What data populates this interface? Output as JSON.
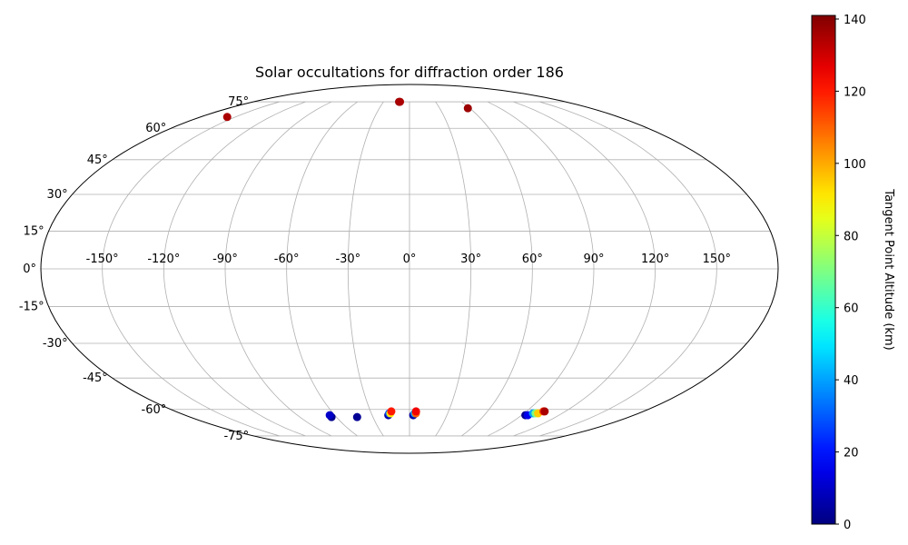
{
  "chart_data": {
    "type": "scatter",
    "projection": "mollweide",
    "title": "Solar occultations for diffraction order 186",
    "x_ticks": [
      -150,
      -120,
      -90,
      -60,
      -30,
      0,
      30,
      60,
      90,
      120,
      150
    ],
    "x_tick_labels": [
      "-150°",
      "-120°",
      "-90°",
      "-60°",
      "-30°",
      "0°",
      "30°",
      "60°",
      "90°",
      "120°",
      "150°"
    ],
    "y_ticks": [
      -75,
      -60,
      -45,
      -30,
      -15,
      0,
      15,
      30,
      45,
      60,
      75
    ],
    "y_tick_labels": [
      "-75°",
      "-60°",
      "-45°",
      "-30°",
      "-15°",
      "0°",
      "15°",
      "30°",
      "45°",
      "60°",
      "75°"
    ],
    "grid": true,
    "xlim": [
      -180,
      180
    ],
    "ylim": [
      -90,
      90
    ],
    "colorbar": {
      "label": "Tangent Point Altitude (km)",
      "range": [
        0,
        141
      ],
      "ticks": [
        0,
        20,
        40,
        60,
        80,
        100,
        120,
        140
      ],
      "tick_labels": [
        "0",
        "20",
        "40",
        "60",
        "80",
        "100",
        "120",
        "140"
      ],
      "colormap": "jet"
    },
    "points": [
      {
        "lon": -157,
        "lat": 66,
        "alt": 135
      },
      {
        "lon": -12,
        "lat": 75,
        "alt": 138
      },
      {
        "lon": -11,
        "lat": 75,
        "alt": 135
      },
      {
        "lon": 58,
        "lat": 71,
        "alt": 137
      },
      {
        "lon": -64,
        "lat": -64,
        "alt": 2
      },
      {
        "lon": -64,
        "lat": -63,
        "alt": 10
      },
      {
        "lon": -43,
        "lat": -64,
        "alt": 3
      },
      {
        "lon": -17,
        "lat": -63,
        "alt": 5
      },
      {
        "lon": -16,
        "lat": -62,
        "alt": 30
      },
      {
        "lon": -15,
        "lat": -62,
        "alt": 90
      },
      {
        "lon": -14,
        "lat": -61,
        "alt": 120
      },
      {
        "lon": 3,
        "lat": -63,
        "alt": 5
      },
      {
        "lon": 4,
        "lat": -62,
        "alt": 40
      },
      {
        "lon": 5,
        "lat": -62,
        "alt": 110
      },
      {
        "lon": 5,
        "lat": -61,
        "alt": 125
      },
      {
        "lon": 93,
        "lat": -63,
        "alt": 2
      },
      {
        "lon": 95,
        "lat": -63,
        "alt": 15
      },
      {
        "lon": 97,
        "lat": -62,
        "alt": 40
      },
      {
        "lon": 99,
        "lat": -62,
        "alt": 70
      },
      {
        "lon": 101,
        "lat": -62,
        "alt": 95
      },
      {
        "lon": 103,
        "lat": -61,
        "alt": 115
      },
      {
        "lon": 104,
        "lat": -61,
        "alt": 135
      }
    ]
  }
}
